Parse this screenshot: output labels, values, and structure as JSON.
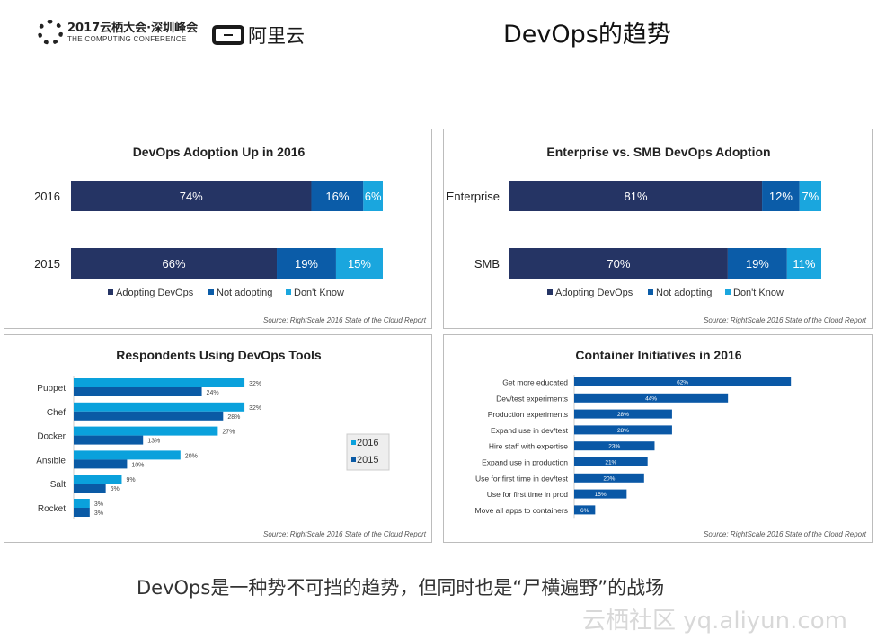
{
  "header": {
    "conference_logo_line1": "2017云栖大会·深圳峰会",
    "conference_logo_line2": "THE COMPUTING CONFERENCE",
    "aliyun_logo": "阿里云",
    "title": "DevOps的趋势"
  },
  "footer": {
    "caption": "DevOps是一种势不可挡的趋势，但同时也是“尸横遍野”的战场",
    "watermark": "云栖社区 yq.aliyun.com"
  },
  "colors": {
    "navy": "#253464",
    "blue": "#0b5ca8",
    "light_blue": "#1aa6de",
    "bar_2016": "#0aa1dc",
    "bar_2015": "#0a5aa5",
    "container_bar": "#0a58a6"
  },
  "chart_data": [
    {
      "type": "bar",
      "orientation": "horizontal",
      "stacked": true,
      "title": "DevOps Adoption Up in 2016",
      "categories": [
        "2016",
        "2015"
      ],
      "series": [
        {
          "name": "Adopting DevOps",
          "values": [
            74,
            66
          ]
        },
        {
          "name": "Not adopting",
          "values": [
            16,
            19
          ]
        },
        {
          "name": "Don't Know",
          "values": [
            6,
            15
          ]
        }
      ],
      "value_suffix": "%",
      "legend": "bottom",
      "source": "Source: RightScale 2016 State of the Cloud Report"
    },
    {
      "type": "bar",
      "orientation": "horizontal",
      "stacked": true,
      "title": "Enterprise vs. SMB DevOps Adoption",
      "categories": [
        "Enterprise",
        "SMB"
      ],
      "series": [
        {
          "name": "Adopting DevOps",
          "values": [
            81,
            70
          ]
        },
        {
          "name": "Not adopting",
          "values": [
            12,
            19
          ]
        },
        {
          "name": "Don't Know",
          "values": [
            7,
            11
          ]
        }
      ],
      "value_suffix": "%",
      "legend": "bottom",
      "source": "Source: RightScale 2016 State of the Cloud Report"
    },
    {
      "type": "bar",
      "orientation": "horizontal",
      "title": "Respondents Using DevOps Tools",
      "categories": [
        "Puppet",
        "Chef",
        "Docker",
        "Ansible",
        "Salt",
        "Rocket"
      ],
      "series": [
        {
          "name": "2016",
          "values": [
            32,
            32,
            27,
            20,
            9,
            3
          ]
        },
        {
          "name": "2015",
          "values": [
            24,
            28,
            13,
            10,
            6,
            3
          ]
        }
      ],
      "value_suffix": "%",
      "legend": "right",
      "source": "Source: RightScale 2016 State of the Cloud Report"
    },
    {
      "type": "bar",
      "orientation": "horizontal",
      "title": "Container Initiatives in 2016",
      "categories": [
        "Get more educated",
        "Dev/test experiments",
        "Production experiments",
        "Expand use in dev/test",
        "Hire staff with expertise",
        "Expand use in production",
        "Use for first time in dev/test",
        "Use for first time in prod",
        "Move all apps to containers"
      ],
      "values": [
        62,
        44,
        28,
        28,
        23,
        21,
        20,
        15,
        6
      ],
      "value_suffix": "%",
      "source": "Source: RightScale 2016 State of the Cloud Report"
    }
  ]
}
